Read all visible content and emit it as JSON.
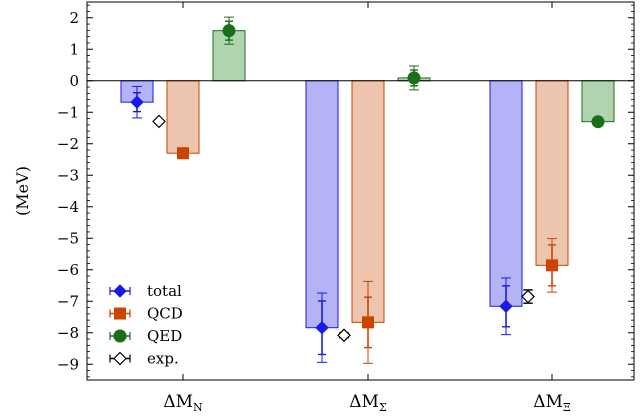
{
  "chart_data": {
    "type": "bar",
    "ylabel": "(MeV)",
    "ylim": [
      -9.5,
      2.5
    ],
    "yticks": [
      -9,
      -8,
      -7,
      -6,
      -5,
      -4,
      -3,
      -2,
      -1,
      0,
      1,
      2
    ],
    "ytick_labels": [
      "−9",
      "−8",
      "−7",
      "−6",
      "−5",
      "−4",
      "−3",
      "−2",
      "−1",
      "0",
      "1",
      "2"
    ],
    "grid": false,
    "legend_position": "lower-left",
    "categories": [
      {
        "base": "ΔM",
        "sub": "N"
      },
      {
        "base": "ΔM",
        "sub": "Σ"
      },
      {
        "base": "ΔM",
        "sub": "Ξ"
      }
    ],
    "series": [
      {
        "name": "total",
        "marker": "diamond",
        "color": "#1a1ae6",
        "bar_fill": "#b3b3f5",
        "values": [
          -0.68,
          -7.84,
          -7.16
        ],
        "err_outer": [
          0.5,
          1.1,
          0.9
        ],
        "err_inner": [
          0.3,
          0.85,
          0.65
        ]
      },
      {
        "name": "QCD",
        "marker": "square",
        "color": "#cc4400",
        "bar_fill": "#edc4ae",
        "values": [
          -2.3,
          -7.67,
          -5.86
        ],
        "err_outer": [
          0.15,
          1.3,
          0.85
        ],
        "err_inner": [
          0.12,
          0.8,
          0.65
        ]
      },
      {
        "name": "QED",
        "marker": "circle",
        "color": "#1a6e1a",
        "bar_fill": "#b0d4b0",
        "values": [
          1.59,
          0.09,
          -1.3
        ],
        "err_outer": [
          0.43,
          0.38,
          0.06
        ],
        "err_inner": [
          0.3,
          0.25,
          0.05
        ]
      },
      {
        "name": "exp.",
        "marker": "open-diamond",
        "color": "#000000",
        "values": [
          -1.29,
          -8.08,
          -6.85
        ],
        "err_outer": [
          0.0,
          0.08,
          0.21
        ],
        "err_inner": [
          0.0,
          0.08,
          0.21
        ]
      }
    ]
  }
}
